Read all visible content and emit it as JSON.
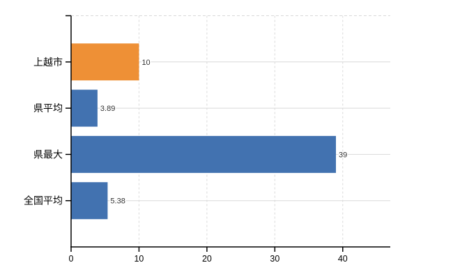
{
  "chart_data": {
    "type": "bar",
    "orientation": "horizontal",
    "title": "",
    "categories": [
      "上越市",
      "県平均",
      "県最大",
      "全国平均"
    ],
    "values": [
      10,
      3.89,
      39,
      5.38
    ],
    "value_labels": [
      "10",
      "3.89",
      "39",
      "5.38"
    ],
    "bar_colors": [
      "#ee9036",
      "#4272b0",
      "#4272b0",
      "#4272b0"
    ],
    "xlim": [
      0,
      47
    ],
    "xticks": [
      0,
      10,
      20,
      30,
      40
    ],
    "xtick_labels": [
      "0",
      "10",
      "20",
      "30",
      "40"
    ],
    "legend": "none",
    "grid": {
      "vertical_style": "dashed",
      "horizontal_style": "solid",
      "top_border_style": "dashed"
    },
    "colors": {
      "grid": "#d9d9d9",
      "axis": "#000000",
      "tick_text": "#000000",
      "category_text": "#000000",
      "value_text": "#333333",
      "background": "#ffffff"
    }
  }
}
